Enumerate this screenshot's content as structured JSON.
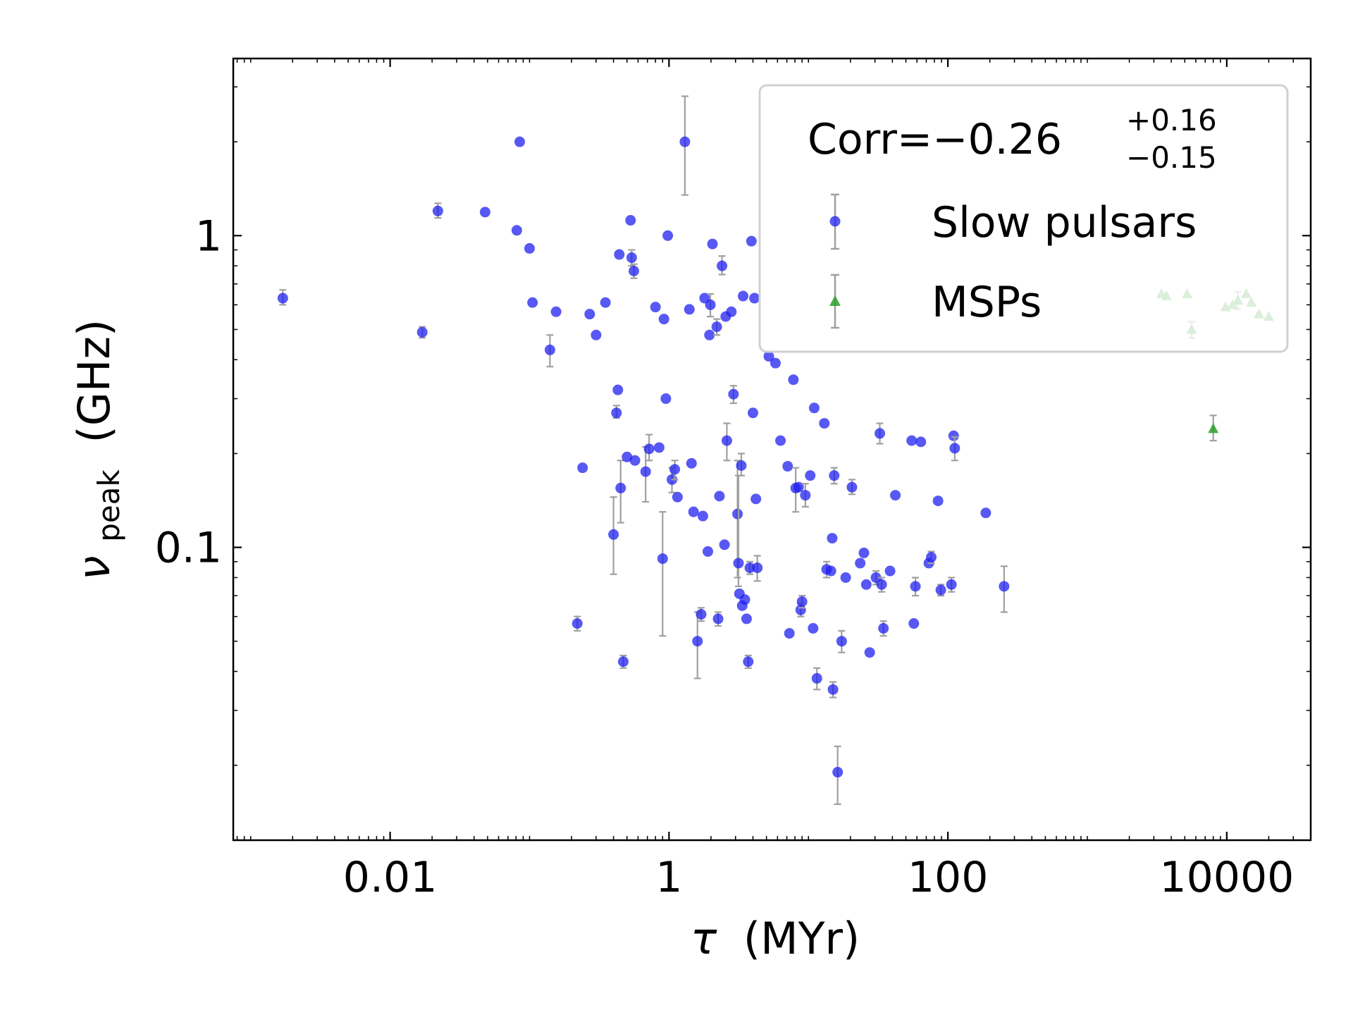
{
  "chart_data": {
    "type": "scatter",
    "xscale": "log",
    "yscale": "log",
    "xlim": [
      0.00075,
      40000
    ],
    "ylim": [
      0.0115,
      3.7
    ],
    "xticks": [
      {
        "value": 0.01,
        "label": "0.01"
      },
      {
        "value": 1,
        "label": "1"
      },
      {
        "value": 100,
        "label": "100"
      },
      {
        "value": 10000,
        "label": "10000"
      }
    ],
    "yticks": [
      {
        "value": 0.1,
        "label": "0.1"
      },
      {
        "value": 1,
        "label": "1"
      }
    ],
    "xlabel_symbol": "τ",
    "xlabel_unit": "(MYr)",
    "ylabel_symbol": "ν",
    "ylabel_subscript": "peak",
    "ylabel_unit": "(GHz)",
    "grid": false,
    "legend": {
      "placement": "top-right",
      "corr_prefix": "Corr=",
      "corr_value": "−0.26",
      "corr_plus": "+0.16",
      "corr_minus": "−0.15",
      "entries": [
        "Slow pulsars",
        "MSPs"
      ]
    },
    "colors": {
      "slow": "#2020f0",
      "msp": "#2ca02c",
      "errorbar": "#a0a0a0"
    },
    "series": [
      {
        "name": "Slow pulsars",
        "marker": "circle",
        "points": [
          {
            "x": 0.0017,
            "y": 0.63,
            "lo": 0.6,
            "hi": 0.67
          },
          {
            "x": 0.017,
            "y": 0.49,
            "lo": 0.47,
            "hi": 0.51
          },
          {
            "x": 0.022,
            "y": 1.2,
            "lo": 1.14,
            "hi": 1.27
          },
          {
            "x": 0.048,
            "y": 1.19
          },
          {
            "x": 0.081,
            "y": 1.04
          },
          {
            "x": 0.085,
            "y": 2.0
          },
          {
            "x": 0.1,
            "y": 0.91
          },
          {
            "x": 0.105,
            "y": 0.61
          },
          {
            "x": 0.14,
            "y": 0.43,
            "lo": 0.38,
            "hi": 0.48
          },
          {
            "x": 0.155,
            "y": 0.57
          },
          {
            "x": 0.24,
            "y": 0.18
          },
          {
            "x": 0.27,
            "y": 0.56
          },
          {
            "x": 0.3,
            "y": 0.48
          },
          {
            "x": 0.35,
            "y": 0.61
          },
          {
            "x": 0.22,
            "y": 0.057,
            "lo": 0.054,
            "hi": 0.06
          },
          {
            "x": 0.4,
            "y": 0.11,
            "lo": 0.082,
            "hi": 0.145
          },
          {
            "x": 0.42,
            "y": 0.27,
            "lo": 0.26,
            "hi": 0.285
          },
          {
            "x": 0.43,
            "y": 0.32
          },
          {
            "x": 0.44,
            "y": 0.87
          },
          {
            "x": 0.45,
            "y": 0.155,
            "lo": 0.12,
            "hi": 0.19
          },
          {
            "x": 0.47,
            "y": 0.043,
            "lo": 0.041,
            "hi": 0.045
          },
          {
            "x": 0.5,
            "y": 0.195
          },
          {
            "x": 0.53,
            "y": 1.12
          },
          {
            "x": 0.54,
            "y": 0.85,
            "lo": 0.8,
            "hi": 0.9
          },
          {
            "x": 0.56,
            "y": 0.77,
            "lo": 0.73,
            "hi": 0.81
          },
          {
            "x": 0.57,
            "y": 0.19
          },
          {
            "x": 0.68,
            "y": 0.175,
            "lo": 0.14,
            "hi": 0.21
          },
          {
            "x": 0.72,
            "y": 0.207,
            "lo": 0.19,
            "hi": 0.23
          },
          {
            "x": 0.8,
            "y": 0.59
          },
          {
            "x": 0.85,
            "y": 0.209
          },
          {
            "x": 0.9,
            "y": 0.092,
            "lo": 0.052,
            "hi": 0.13
          },
          {
            "x": 0.92,
            "y": 0.54
          },
          {
            "x": 0.95,
            "y": 0.3
          },
          {
            "x": 0.98,
            "y": 1.0
          },
          {
            "x": 1.05,
            "y": 0.165,
            "lo": 0.15,
            "hi": 0.18
          },
          {
            "x": 1.1,
            "y": 0.178,
            "lo": 0.165,
            "hi": 0.19
          },
          {
            "x": 1.15,
            "y": 0.145
          },
          {
            "x": 1.3,
            "y": 2.0,
            "lo": 1.35,
            "hi": 2.8
          },
          {
            "x": 1.4,
            "y": 0.58
          },
          {
            "x": 1.45,
            "y": 0.186
          },
          {
            "x": 1.5,
            "y": 0.13
          },
          {
            "x": 1.6,
            "y": 0.05,
            "lo": 0.038,
            "hi": 0.062
          },
          {
            "x": 1.7,
            "y": 0.061,
            "lo": 0.058,
            "hi": 0.064
          },
          {
            "x": 1.75,
            "y": 0.126
          },
          {
            "x": 1.8,
            "y": 0.63
          },
          {
            "x": 1.9,
            "y": 0.097
          },
          {
            "x": 1.95,
            "y": 0.48
          },
          {
            "x": 1.98,
            "y": 0.6,
            "lo": 0.55,
            "hi": 0.65
          },
          {
            "x": 2.05,
            "y": 0.94
          },
          {
            "x": 2.2,
            "y": 0.51,
            "lo": 0.48,
            "hi": 0.54
          },
          {
            "x": 2.25,
            "y": 0.059,
            "lo": 0.056,
            "hi": 0.062
          },
          {
            "x": 2.3,
            "y": 0.146
          },
          {
            "x": 2.4,
            "y": 0.8,
            "lo": 0.75,
            "hi": 0.86
          },
          {
            "x": 2.5,
            "y": 0.102
          },
          {
            "x": 2.55,
            "y": 0.55
          },
          {
            "x": 2.6,
            "y": 0.22,
            "lo": 0.19,
            "hi": 0.25
          },
          {
            "x": 2.8,
            "y": 0.57
          },
          {
            "x": 2.9,
            "y": 0.31,
            "lo": 0.29,
            "hi": 0.33
          },
          {
            "x": 3.1,
            "y": 0.128,
            "lo": 0.08,
            "hi": 0.19
          },
          {
            "x": 3.15,
            "y": 0.089,
            "lo": 0.075,
            "hi": 0.17
          },
          {
            "x": 3.2,
            "y": 0.071
          },
          {
            "x": 3.3,
            "y": 0.183,
            "lo": 0.17,
            "hi": 0.2
          },
          {
            "x": 3.35,
            "y": 0.065
          },
          {
            "x": 3.4,
            "y": 0.64
          },
          {
            "x": 3.5,
            "y": 0.068
          },
          {
            "x": 3.6,
            "y": 0.059
          },
          {
            "x": 3.7,
            "y": 0.043,
            "lo": 0.041,
            "hi": 0.045
          },
          {
            "x": 3.8,
            "y": 0.086,
            "lo": 0.082,
            "hi": 0.09
          },
          {
            "x": 3.9,
            "y": 0.96
          },
          {
            "x": 4.0,
            "y": 0.27
          },
          {
            "x": 4.1,
            "y": 0.63
          },
          {
            "x": 4.2,
            "y": 0.143
          },
          {
            "x": 4.3,
            "y": 0.086,
            "lo": 0.078,
            "hi": 0.094
          },
          {
            "x": 5.2,
            "y": 0.41
          },
          {
            "x": 5.8,
            "y": 0.39
          },
          {
            "x": 6.3,
            "y": 0.22
          },
          {
            "x": 7.1,
            "y": 0.182
          },
          {
            "x": 7.3,
            "y": 0.053
          },
          {
            "x": 7.8,
            "y": 0.345
          },
          {
            "x": 8.1,
            "y": 0.155,
            "lo": 0.13,
            "hi": 0.18
          },
          {
            "x": 8.5,
            "y": 0.156
          },
          {
            "x": 8.8,
            "y": 0.063,
            "lo": 0.06,
            "hi": 0.066
          },
          {
            "x": 9.0,
            "y": 0.067,
            "lo": 0.064,
            "hi": 0.07
          },
          {
            "x": 9.5,
            "y": 0.147,
            "lo": 0.135,
            "hi": 0.16
          },
          {
            "x": 10.3,
            "y": 0.17
          },
          {
            "x": 10.8,
            "y": 0.055
          },
          {
            "x": 11.0,
            "y": 0.28
          },
          {
            "x": 11.5,
            "y": 0.038,
            "lo": 0.035,
            "hi": 0.041
          },
          {
            "x": 13.0,
            "y": 0.25
          },
          {
            "x": 13.5,
            "y": 0.085,
            "lo": 0.08,
            "hi": 0.09
          },
          {
            "x": 14.5,
            "y": 0.084
          },
          {
            "x": 14.8,
            "y": 0.107
          },
          {
            "x": 15.0,
            "y": 0.035,
            "lo": 0.033,
            "hi": 0.037
          },
          {
            "x": 15.3,
            "y": 0.17,
            "lo": 0.16,
            "hi": 0.18
          },
          {
            "x": 16.2,
            "y": 0.019,
            "lo": 0.015,
            "hi": 0.023
          },
          {
            "x": 17.3,
            "y": 0.05,
            "lo": 0.046,
            "hi": 0.054
          },
          {
            "x": 18.5,
            "y": 0.08
          },
          {
            "x": 20.5,
            "y": 0.156,
            "lo": 0.148,
            "hi": 0.165
          },
          {
            "x": 23.5,
            "y": 0.089
          },
          {
            "x": 25.0,
            "y": 0.096
          },
          {
            "x": 26.0,
            "y": 0.076
          },
          {
            "x": 27.5,
            "y": 0.046
          },
          {
            "x": 30.5,
            "y": 0.08,
            "lo": 0.076,
            "hi": 0.084
          },
          {
            "x": 32.5,
            "y": 0.232,
            "lo": 0.215,
            "hi": 0.25
          },
          {
            "x": 33.5,
            "y": 0.076,
            "lo": 0.072,
            "hi": 0.08
          },
          {
            "x": 34.5,
            "y": 0.055,
            "lo": 0.052,
            "hi": 0.058
          },
          {
            "x": 38.5,
            "y": 0.084
          },
          {
            "x": 42.0,
            "y": 0.147
          },
          {
            "x": 55.0,
            "y": 0.22
          },
          {
            "x": 57.0,
            "y": 0.057
          },
          {
            "x": 58.5,
            "y": 0.075,
            "lo": 0.07,
            "hi": 0.08
          },
          {
            "x": 64.0,
            "y": 0.218
          },
          {
            "x": 73.0,
            "y": 0.089
          },
          {
            "x": 76.0,
            "y": 0.093,
            "lo": 0.089,
            "hi": 0.097
          },
          {
            "x": 85.0,
            "y": 0.141
          },
          {
            "x": 89.0,
            "y": 0.073,
            "lo": 0.07,
            "hi": 0.076
          },
          {
            "x": 106.0,
            "y": 0.076,
            "lo": 0.072,
            "hi": 0.08
          },
          {
            "x": 110.0,
            "y": 0.228
          },
          {
            "x": 112.0,
            "y": 0.208,
            "lo": 0.19,
            "hi": 0.226
          },
          {
            "x": 187.0,
            "y": 0.129
          },
          {
            "x": 253.0,
            "y": 0.075,
            "lo": 0.062,
            "hi": 0.087
          }
        ]
      },
      {
        "name": "MSPs",
        "marker": "triangle",
        "points": [
          {
            "x": 3400,
            "y": 0.65
          },
          {
            "x": 3700,
            "y": 0.64
          },
          {
            "x": 5200,
            "y": 0.65
          },
          {
            "x": 5600,
            "y": 0.5,
            "lo": 0.47,
            "hi": 0.53
          },
          {
            "x": 8000,
            "y": 0.24,
            "lo": 0.22,
            "hi": 0.265
          },
          {
            "x": 9800,
            "y": 0.59
          },
          {
            "x": 11000,
            "y": 0.6
          },
          {
            "x": 12000,
            "y": 0.62,
            "lo": 0.58,
            "hi": 0.66
          },
          {
            "x": 13800,
            "y": 0.65
          },
          {
            "x": 15000,
            "y": 0.61
          },
          {
            "x": 17000,
            "y": 0.56
          },
          {
            "x": 20000,
            "y": 0.55
          }
        ]
      }
    ]
  }
}
